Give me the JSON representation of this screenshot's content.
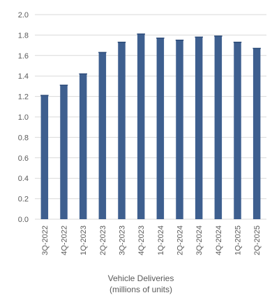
{
  "chart_data": {
    "type": "bar",
    "categories": [
      "3Q-2022",
      "4Q-2022",
      "1Q-2023",
      "2Q-2023",
      "3Q-2023",
      "4Q-2023",
      "1Q-2024",
      "2Q-2024",
      "3Q-2024",
      "4Q-2024",
      "1Q-2025",
      "2Q-2025"
    ],
    "values": [
      1.21,
      1.31,
      1.42,
      1.63,
      1.73,
      1.81,
      1.77,
      1.75,
      1.78,
      1.79,
      1.73,
      1.67
    ],
    "title": "",
    "xlabel": "Vehicle Deliveries",
    "xlabel_line2": "(millions of units)",
    "ylabel": "",
    "ylim": [
      0,
      2.0
    ],
    "yticks": [
      "0.0",
      "0.2",
      "0.4",
      "0.6",
      "0.8",
      "1.0",
      "1.2",
      "1.4",
      "1.6",
      "1.8",
      "2.0"
    ],
    "grid": true,
    "legend": "none",
    "bar_color": "#3e5f8f",
    "grid_color": "#d9d9d9"
  }
}
